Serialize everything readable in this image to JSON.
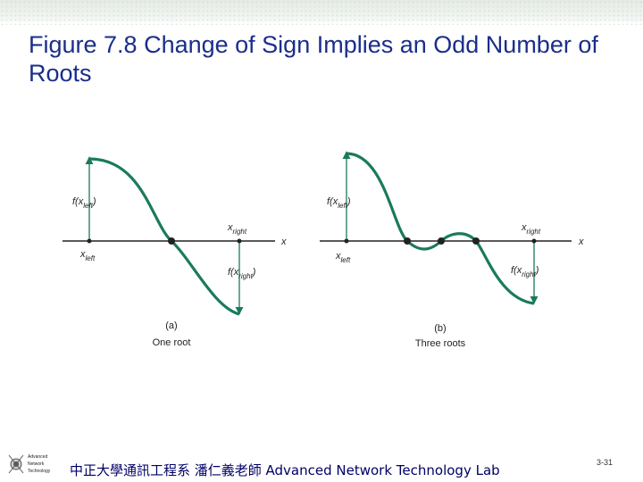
{
  "slide": {
    "title": "Figure 7.8  Change of Sign Implies an Odd Number of Roots",
    "footer_text": "中正大學通訊工程系 潘仁義老師   Advanced Network Technology Lab",
    "page_number": "3-31",
    "logo_text": [
      "Advanced",
      "Network",
      "Technology"
    ]
  },
  "colors": {
    "title": "#1a2e8a",
    "curve": "#1a7a5e",
    "axis": "#222222",
    "footer": "#000066"
  },
  "panels": [
    {
      "caption_letter": "(a)",
      "caption": "One root",
      "f_left": "f(xleft)",
      "f_right": "f(xright)",
      "x_left": "xleft",
      "x_right": "xright",
      "x_axis": "x"
    },
    {
      "caption_letter": "(b)",
      "caption": "Three roots",
      "f_left": "f(xleft)",
      "f_right": "f(xright)",
      "x_left": "xleft",
      "x_right": "xright",
      "x_axis": "x"
    }
  ]
}
